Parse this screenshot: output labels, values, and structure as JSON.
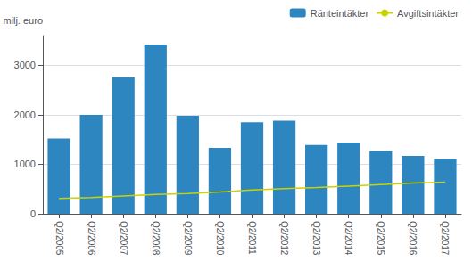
{
  "chart_data": {
    "type": "bar",
    "ylabel": "milj. euro",
    "categories": [
      "Q2/2005",
      "Q2/2006",
      "Q2/2007",
      "Q2/2008",
      "Q2/2009",
      "Q2/2010",
      "Q2/2011",
      "Q2/2012",
      "Q2/2013",
      "Q2/2014",
      "Q2/2015",
      "Q2/2016",
      "Q2/2017"
    ],
    "series": [
      {
        "name": "Ränteintäkter",
        "type": "bar",
        "color": "#2E86C1",
        "values": [
          1520,
          2000,
          2760,
          3420,
          1980,
          1330,
          1850,
          1880,
          1390,
          1440,
          1270,
          1170,
          1110
        ]
      },
      {
        "name": "Avgiftsintäkter",
        "type": "line",
        "color": "#C8D400",
        "values": [
          310,
          330,
          360,
          390,
          410,
          440,
          480,
          510,
          530,
          560,
          590,
          620,
          640
        ]
      }
    ],
    "ylim": [
      0,
      3600
    ],
    "yticks": [
      0,
      1000,
      2000,
      3000
    ],
    "grid": true,
    "legend": "upper right"
  }
}
